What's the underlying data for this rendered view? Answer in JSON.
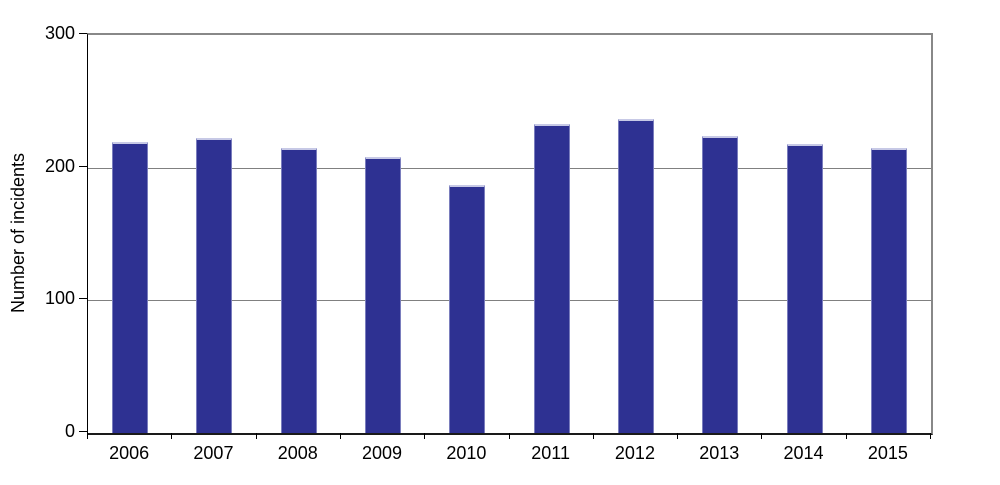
{
  "chart_data": {
    "type": "bar",
    "title": "",
    "categories": [
      "2006",
      "2007",
      "2008",
      "2009",
      "2010",
      "2011",
      "2012",
      "2013",
      "2014",
      "2015"
    ],
    "values": [
      219,
      222,
      215,
      208,
      187,
      233,
      237,
      224,
      218,
      215
    ],
    "xlabel": "",
    "ylabel": "Number of incidents",
    "ylim": [
      0,
      300
    ],
    "yticks": [
      0,
      100,
      200,
      300
    ],
    "grid": true,
    "legend_position": "none",
    "colors": {
      "bar_fill": "#2e3192",
      "bar_top_edge": "#c7c9e6",
      "gridline": "#808080",
      "axis": "#000000",
      "plot_border": "#888888",
      "background": "#ffffff",
      "text": "#000000"
    }
  }
}
